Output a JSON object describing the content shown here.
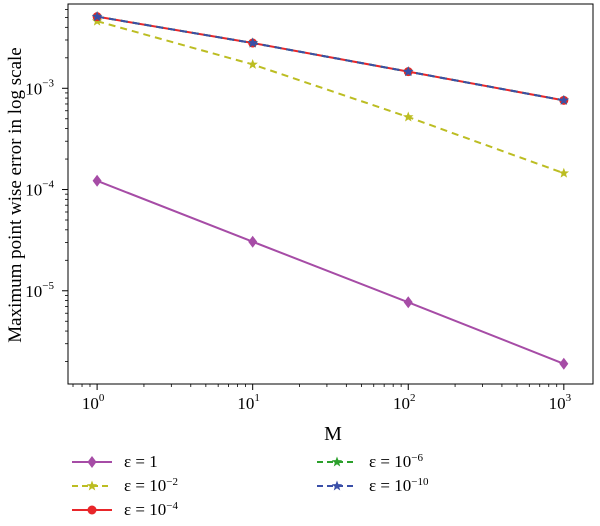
{
  "chart_data": {
    "type": "line",
    "xlabel": "M",
    "ylabel": "Maximum point wise error in log scale",
    "x": [
      1,
      10,
      100,
      1000
    ],
    "xscale": "log",
    "yscale": "log",
    "xlim": [
      0.65,
      1540
    ],
    "ylim": [
      1.2e-06,
      0.0068
    ],
    "x_ticks": [
      {
        "value": 1,
        "base": "10",
        "exp": "0"
      },
      {
        "value": 10,
        "base": "10",
        "exp": "1"
      },
      {
        "value": 100,
        "base": "10",
        "exp": "2"
      },
      {
        "value": 1000,
        "base": "10",
        "exp": "3"
      }
    ],
    "y_ticks": [
      {
        "value": 0.001,
        "base": "10",
        "exp": "−3"
      },
      {
        "value": 0.0001,
        "base": "10",
        "exp": "−4"
      },
      {
        "value": 1e-05,
        "base": "10",
        "exp": "−5"
      }
    ],
    "grid": false,
    "legend_position": "bottom",
    "series": [
      {
        "name_base": "ε = 1",
        "name_exp": "",
        "color": "#a64ca6",
        "dash": "",
        "marker": "diamond",
        "values": [
          0.000122,
          3.05e-05,
          7.7e-06,
          1.9e-06
        ]
      },
      {
        "name_base": "ε = 10",
        "name_exp": "−2",
        "color": "#bcbd22",
        "dash": "7,5",
        "marker": "star",
        "values": [
          0.0046,
          0.00172,
          0.00052,
          0.000145
        ]
      },
      {
        "name_base": "ε = 10",
        "name_exp": "−4",
        "color": "#e8262a",
        "dash": "",
        "marker": "circle",
        "values": [
          0.0051,
          0.0028,
          0.00146,
          0.00076
        ]
      },
      {
        "name_base": "ε = 10",
        "name_exp": "−6",
        "color": "#2ca02c",
        "dash": "7,5",
        "marker": "star",
        "values": [
          0.0051,
          0.0028,
          0.00146,
          0.00076
        ]
      },
      {
        "name_base": "ε = 10",
        "name_exp": "−10",
        "color": "#3a4fa8",
        "dash": "7,5",
        "marker": "star",
        "values": [
          0.0051,
          0.0028,
          0.00146,
          0.00076
        ]
      }
    ]
  }
}
